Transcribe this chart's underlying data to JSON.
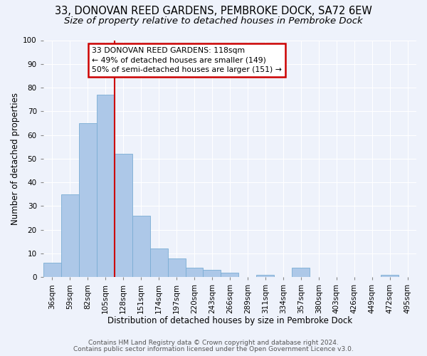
{
  "title": "33, DONOVAN REED GARDENS, PEMBROKE DOCK, SA72 6EW",
  "subtitle": "Size of property relative to detached houses in Pembroke Dock",
  "xlabel": "Distribution of detached houses by size in Pembroke Dock",
  "ylabel": "Number of detached properties",
  "bar_labels": [
    "36sqm",
    "59sqm",
    "82sqm",
    "105sqm",
    "128sqm",
    "151sqm",
    "174sqm",
    "197sqm",
    "220sqm",
    "243sqm",
    "266sqm",
    "289sqm",
    "311sqm",
    "334sqm",
    "357sqm",
    "380sqm",
    "403sqm",
    "426sqm",
    "449sqm",
    "472sqm",
    "495sqm"
  ],
  "bar_values": [
    6,
    35,
    65,
    77,
    52,
    26,
    12,
    8,
    4,
    3,
    2,
    0,
    1,
    0,
    4,
    0,
    0,
    0,
    0,
    1,
    0
  ],
  "bar_color": "#adc8e8",
  "bar_edge_color": "#7aadd4",
  "ylim": [
    0,
    100
  ],
  "yticks": [
    0,
    10,
    20,
    30,
    40,
    50,
    60,
    70,
    80,
    90,
    100
  ],
  "marker_label": "33 DONOVAN REED GARDENS: 118sqm",
  "annotation_line1": "← 49% of detached houses are smaller (149)",
  "annotation_line2": "50% of semi-detached houses are larger (151) →",
  "marker_color": "#cc0000",
  "annotation_box_edge_color": "#cc0000",
  "footer_line1": "Contains HM Land Registry data © Crown copyright and database right 2024.",
  "footer_line2": "Contains public sector information licensed under the Open Government Licence v3.0.",
  "background_color": "#eef2fb",
  "plot_bg_color": "#eef2fb",
  "title_fontsize": 10.5,
  "subtitle_fontsize": 9.5,
  "axis_label_fontsize": 8.5,
  "tick_fontsize": 7.5,
  "footer_fontsize": 6.5
}
